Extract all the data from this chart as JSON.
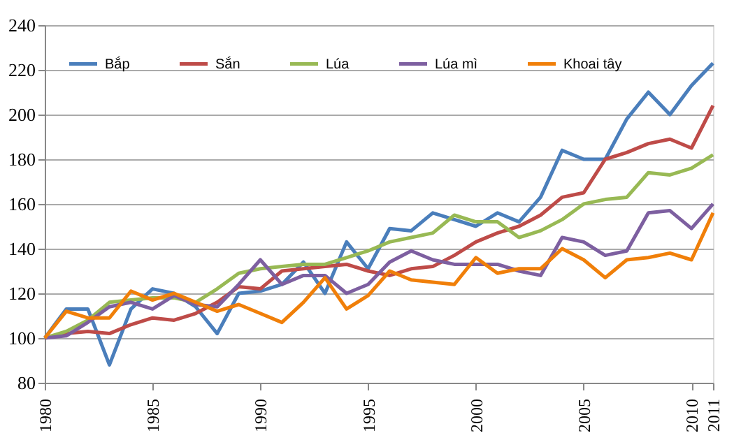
{
  "chart_data": {
    "type": "line",
    "x": [
      1980,
      1981,
      1982,
      1983,
      1984,
      1985,
      1986,
      1987,
      1988,
      1989,
      1990,
      1991,
      1992,
      1993,
      1994,
      1995,
      1996,
      1997,
      1998,
      1999,
      2000,
      2001,
      2002,
      2003,
      2004,
      2005,
      2006,
      2007,
      2008,
      2009,
      2010,
      2011
    ],
    "series": [
      {
        "name": "Bắp",
        "color": "#4a7ebb",
        "values": [
          100,
          113,
          113,
          88,
          113,
          122,
          120,
          114,
          102,
          120,
          121,
          124,
          134,
          120,
          143,
          131,
          149,
          148,
          156,
          153,
          150,
          156,
          152,
          163,
          184,
          180,
          180,
          198,
          210,
          200,
          213,
          223
        ]
      },
      {
        "name": "Sắn",
        "color": "#be4b48",
        "values": [
          100,
          102,
          103,
          102,
          106,
          109,
          108,
          111,
          116,
          123,
          122,
          130,
          131,
          132,
          133,
          130,
          128,
          131,
          132,
          137,
          143,
          147,
          150,
          155,
          163,
          165,
          180,
          183,
          187,
          189,
          185,
          204
        ]
      },
      {
        "name": "Lúa",
        "color": "#98b954",
        "values": [
          100,
          103,
          108,
          116,
          117,
          118,
          118,
          116,
          122,
          129,
          131,
          132,
          133,
          133,
          136,
          139,
          143,
          145,
          147,
          155,
          152,
          152,
          145,
          148,
          153,
          160,
          162,
          163,
          174,
          173,
          176,
          182
        ]
      },
      {
        "name": "Lúa mì",
        "color": "#7d5fa0",
        "values": [
          100,
          101,
          107,
          114,
          116,
          113,
          119,
          115,
          114,
          124,
          135,
          124,
          128,
          128,
          120,
          124,
          134,
          139,
          135,
          133,
          133,
          133,
          130,
          128,
          145,
          143,
          137,
          139,
          156,
          157,
          149,
          160
        ]
      },
      {
        "name": "Khoai tây",
        "color": "#f07f09",
        "values": [
          100,
          112,
          109,
          109,
          121,
          117,
          120,
          116,
          112,
          115,
          111,
          107,
          116,
          127,
          113,
          119,
          130,
          126,
          125,
          124,
          136,
          129,
          131,
          131,
          140,
          135,
          127,
          135,
          136,
          138,
          135,
          156
        ]
      }
    ],
    "xlim": [
      1980,
      2011
    ],
    "xticks": [
      1980,
      1985,
      1990,
      1995,
      2000,
      2005,
      2010,
      2011
    ],
    "ylim": [
      80,
      240
    ],
    "yticks": [
      80,
      100,
      120,
      140,
      160,
      180,
      200,
      220,
      240
    ],
    "grid": "y",
    "legend": "top left",
    "marker": "none",
    "line_style": "solid"
  }
}
